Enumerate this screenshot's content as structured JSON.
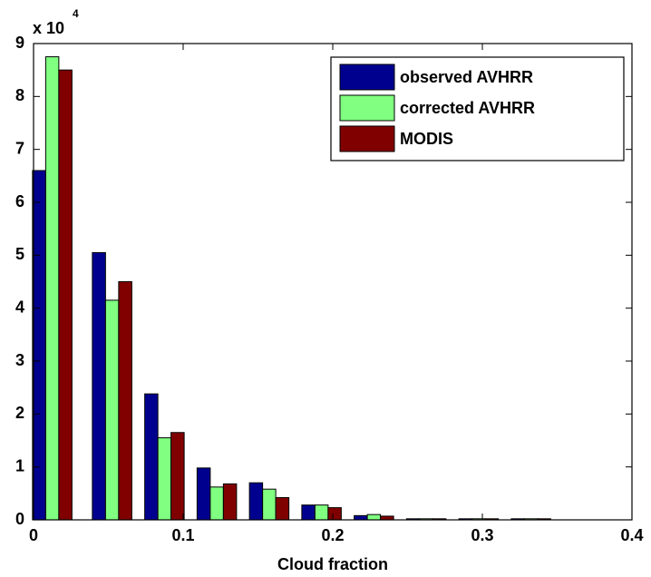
{
  "chart_data": {
    "type": "bar",
    "x_label": "Cloud fraction",
    "y_multiplier": {
      "base": "x 10",
      "exponent": "4"
    },
    "x": [
      0.0125,
      0.0525,
      0.0875,
      0.1225,
      0.1575,
      0.1925,
      0.2275,
      0.2625,
      0.2975,
      0.3325
    ],
    "series": [
      {
        "name": "observed AVHRR",
        "color": "#00008f",
        "values": [
          6.6,
          5.05,
          2.38,
          0.98,
          0.7,
          0.28,
          0.08,
          0.02,
          0.02,
          0.02
        ]
      },
      {
        "name": "corrected AVHRR",
        "color": "#80ff80",
        "values": [
          8.75,
          4.15,
          1.55,
          0.62,
          0.58,
          0.28,
          0.1,
          0.02,
          0.02,
          0.02
        ]
      },
      {
        "name": "MODIS",
        "color": "#800000",
        "values": [
          8.5,
          4.5,
          1.65,
          0.68,
          0.42,
          0.23,
          0.07,
          0.02,
          0.02,
          0.02
        ]
      }
    ],
    "xlim": [
      0,
      0.4
    ],
    "xticks": [
      0,
      0.1,
      0.2,
      0.3,
      0.4
    ],
    "ylim": [
      0,
      9
    ],
    "yticks": [
      0,
      1,
      2,
      3,
      4,
      5,
      6,
      7,
      8,
      9
    ],
    "legend": "top-right"
  }
}
